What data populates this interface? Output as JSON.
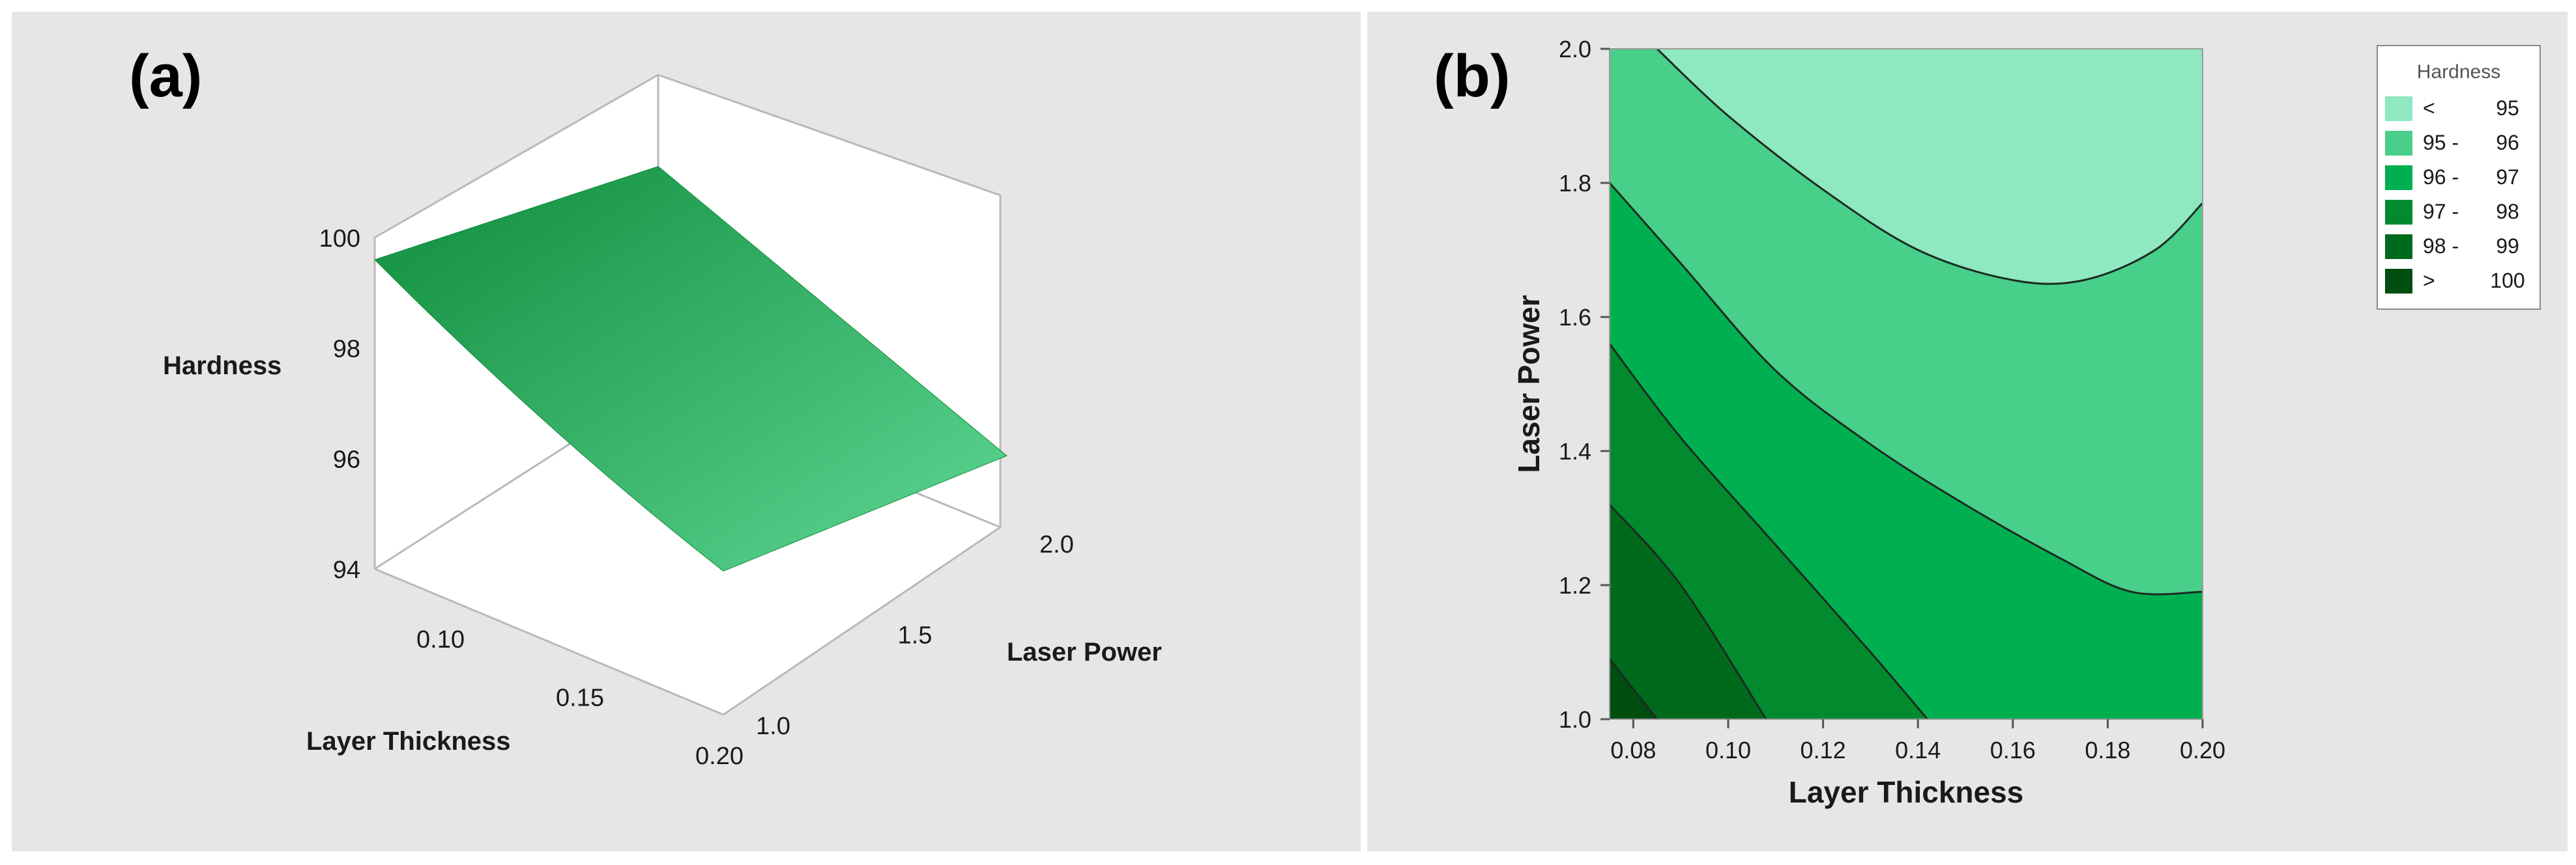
{
  "panel_a": {
    "tag": "(a)"
  },
  "panel_b": {
    "tag": "(b)"
  },
  "colors": {
    "panel_bg": "#e6e6e6",
    "legend_title": "#555555",
    "band_1": "#8ee8c0",
    "band_2": "#48cf8a",
    "band_3": "#00b050",
    "band_4": "#018a2e",
    "band_5": "#006a1c",
    "band_6": "#004d10",
    "surface_light": "#5fd795",
    "surface_dark": "#0f8c3c"
  },
  "chart_data": [
    {
      "type": "surface",
      "title": "",
      "xlabel": "Layer Thickness",
      "ylabel": "Laser Power",
      "zlabel": "Hardness",
      "x_ticks": [
        "0.10",
        "0.15",
        "0.20"
      ],
      "y_ticks": [
        "1.0",
        "1.5",
        "2.0"
      ],
      "z_ticks": [
        "94",
        "96",
        "98",
        "100"
      ],
      "xlim": [
        0.075,
        0.2
      ],
      "ylim": [
        1.0,
        2.0
      ],
      "zlim": [
        94,
        100
      ],
      "surface_grid": {
        "x": [
          0.075,
          0.2
        ],
        "y": [
          1.0,
          2.0
        ],
        "z": [
          [
            99.6,
            96.6
          ],
          [
            98.0,
            95.4
          ]
        ]
      }
    },
    {
      "type": "contour",
      "title": "",
      "xlabel": "Layer Thickness",
      "ylabel": "Laser Power",
      "x_ticks": [
        "0.08",
        "0.10",
        "0.12",
        "0.14",
        "0.16",
        "0.18",
        "0.20"
      ],
      "y_ticks": [
        "1.0",
        "1.2",
        "1.4",
        "1.6",
        "1.8",
        "2.0"
      ],
      "xlim": [
        0.075,
        0.2
      ],
      "ylim": [
        1.0,
        2.0
      ],
      "legend": {
        "title": "Hardness",
        "position": "right",
        "entries": [
          {
            "label": "<  95",
            "lo": "<",
            "hi": "95"
          },
          {
            "label": "95 -  96",
            "lo": "95 -",
            "hi": "96"
          },
          {
            "label": "96 -  97",
            "lo": "96 -",
            "hi": "97"
          },
          {
            "label": "97 -  98",
            "lo": "97 -",
            "hi": "98"
          },
          {
            "label": "98 -  99",
            "lo": "98 -",
            "hi": "99"
          },
          {
            "label": ">  100",
            "lo": ">",
            "hi": "100"
          }
        ]
      },
      "contours": [
        {
          "level": 95,
          "points": [
            [
              0.085,
              2.0
            ],
            [
              0.1,
              1.9
            ],
            [
              0.12,
              1.79
            ],
            [
              0.14,
              1.7
            ],
            [
              0.16,
              1.655
            ],
            [
              0.175,
              1.655
            ],
            [
              0.19,
              1.7
            ],
            [
              0.2,
              1.77
            ]
          ]
        },
        {
          "level": 96,
          "points": [
            [
              0.075,
              1.8
            ],
            [
              0.09,
              1.68
            ],
            [
              0.11,
              1.52
            ],
            [
              0.13,
              1.41
            ],
            [
              0.15,
              1.32
            ],
            [
              0.17,
              1.24
            ],
            [
              0.185,
              1.19
            ],
            [
              0.2,
              1.19
            ]
          ]
        },
        {
          "level": 97,
          "points": [
            [
              0.075,
              1.56
            ],
            [
              0.09,
              1.42
            ],
            [
              0.11,
              1.26
            ],
            [
              0.13,
              1.1
            ],
            [
              0.142,
              1.0
            ]
          ]
        },
        {
          "level": 98,
          "points": [
            [
              0.075,
              1.32
            ],
            [
              0.09,
              1.2
            ],
            [
              0.108,
              1.0
            ]
          ]
        },
        {
          "level": 99,
          "points": [
            [
              0.075,
              1.09
            ],
            [
              0.085,
              1.0
            ]
          ]
        }
      ]
    }
  ]
}
